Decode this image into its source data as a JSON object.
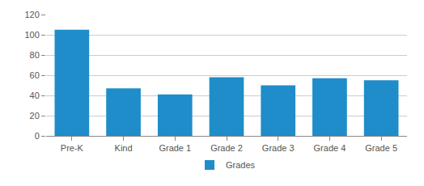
{
  "chart_data": {
    "type": "bar",
    "categories": [
      "Pre-K",
      "Kind",
      "Grade 1",
      "Grade 2",
      "Grade 3",
      "Grade 4",
      "Grade 5"
    ],
    "series": [
      {
        "name": "Grades",
        "color": "#1f8dc9",
        "values": [
          105,
          47,
          41,
          58,
          50,
          57,
          55
        ]
      }
    ],
    "ylim": [
      0,
      120
    ],
    "yticks": [
      0,
      20,
      40,
      60,
      80,
      100,
      120
    ],
    "grid": true,
    "legend": "bottom"
  }
}
